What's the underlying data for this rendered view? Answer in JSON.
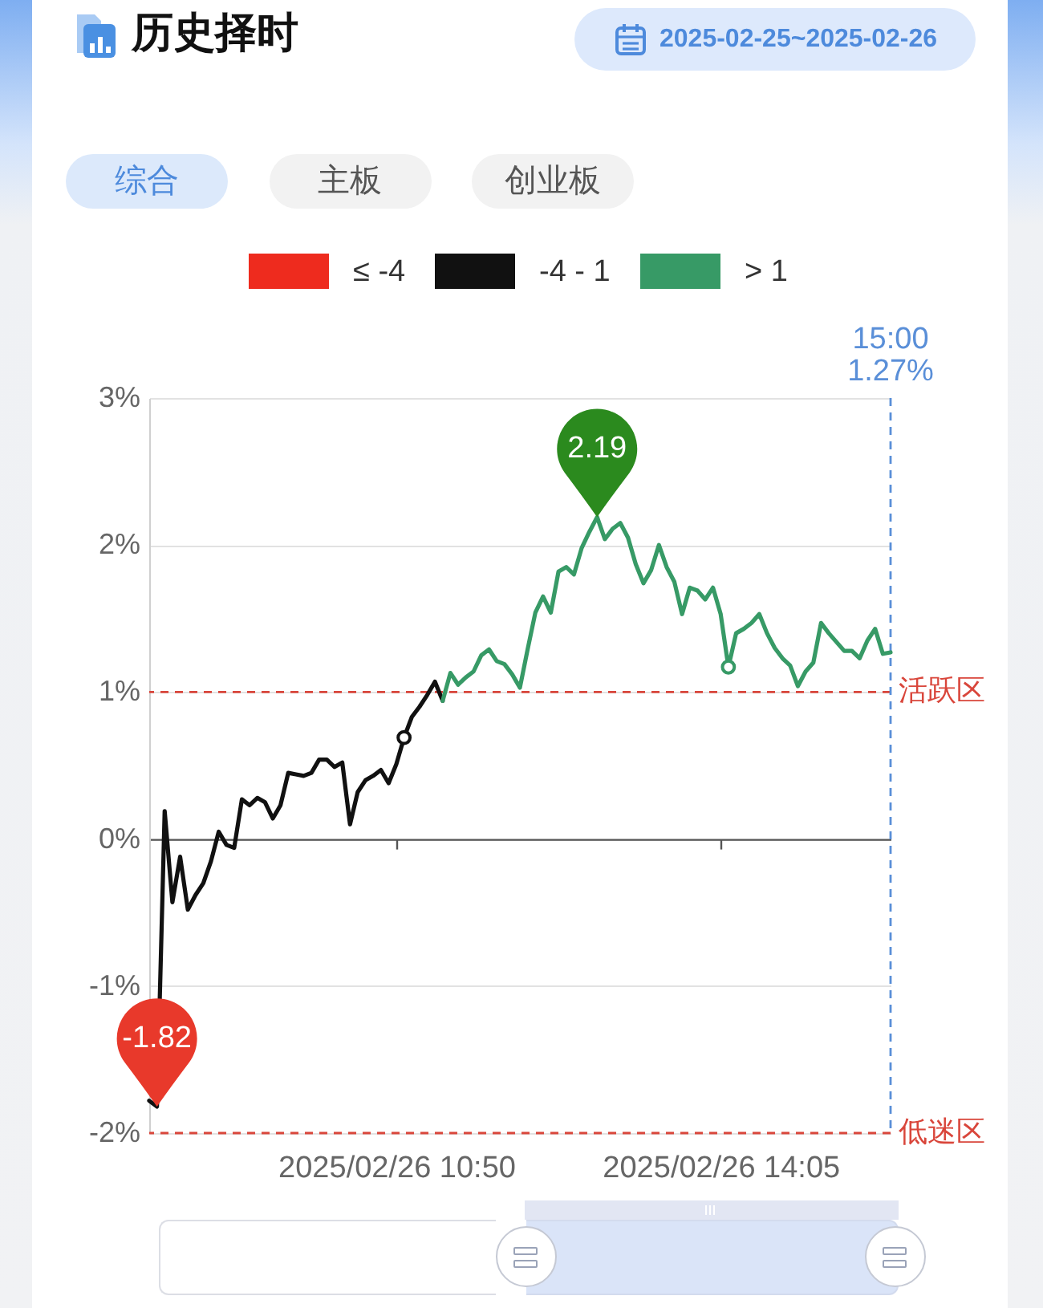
{
  "chart_data": {
    "type": "line",
    "title": "历史择时",
    "subtitle": "2025-02-25~2025-02-26",
    "categories": [
      null,
      null,
      null,
      null,
      null,
      null,
      null,
      null,
      null,
      null,
      null,
      null,
      null,
      null,
      null,
      null,
      null,
      null,
      null,
      null,
      null,
      null,
      null,
      null,
      null,
      null,
      null,
      null,
      null,
      null,
      null,
      null,
      "2025/02/26 10:50",
      null,
      null,
      null,
      null,
      null,
      null,
      null,
      null,
      null,
      null,
      null,
      null,
      null,
      null,
      null,
      null,
      null,
      null,
      null,
      null,
      null,
      null,
      null,
      null,
      null,
      null,
      null,
      null,
      null,
      null,
      null,
      null,
      null,
      null,
      null,
      null,
      null,
      null,
      null,
      null,
      null,
      "2025/02/26 14:05",
      null,
      null,
      null,
      null,
      null,
      null,
      null,
      null,
      null,
      null,
      null,
      null,
      null,
      null,
      null,
      null,
      null,
      null,
      null,
      null,
      null,
      null
    ],
    "ylim": [
      -2,
      3
    ],
    "yticks": [
      {
        "value": -2,
        "label": "-2%"
      },
      {
        "value": -1,
        "label": "-1%"
      },
      {
        "value": 0,
        "label": "0%"
      },
      {
        "value": 1,
        "label": "1%"
      },
      {
        "value": 2,
        "label": "2%"
      },
      {
        "value": 3,
        "label": "3%"
      }
    ],
    "grid": "y",
    "legend": "top",
    "series": [
      {
        "name": "≤ -4",
        "color": "#ee2b1e",
        "values": [
          null,
          null,
          null,
          null,
          null,
          null,
          null,
          null,
          null,
          null,
          null,
          null,
          null,
          null,
          null,
          null,
          null,
          null,
          null,
          null,
          null,
          null,
          null,
          null,
          null,
          null,
          null,
          null,
          null,
          null,
          null,
          null,
          null,
          null,
          null,
          null,
          null,
          null,
          null,
          null,
          null,
          null,
          null,
          null,
          null,
          null,
          null,
          null,
          null,
          null,
          null,
          null,
          null,
          null,
          null,
          null,
          null,
          null,
          null,
          null,
          null,
          null,
          null,
          null,
          null,
          null,
          null,
          null,
          null,
          null,
          null,
          null,
          null,
          null,
          null,
          null,
          null,
          null,
          null,
          null,
          null,
          null,
          null,
          null,
          null,
          null,
          null,
          null,
          null,
          null,
          null,
          null,
          null,
          null,
          null,
          null,
          null
        ]
      },
      {
        "name": "-4 - 1",
        "color": "#111111",
        "values": [
          -1.78,
          -1.82,
          0.19,
          -0.43,
          -0.12,
          -0.48,
          -0.38,
          -0.3,
          -0.15,
          0.05,
          -0.04,
          -0.06,
          0.27,
          0.23,
          0.28,
          0.25,
          0.14,
          0.23,
          0.45,
          0.44,
          0.43,
          0.45,
          0.54,
          0.54,
          0.49,
          0.52,
          0.1,
          0.32,
          0.4,
          0.43,
          0.47,
          0.38,
          0.51,
          0.69,
          0.83,
          0.9,
          0.98,
          1.07,
          0.94,
          null,
          null,
          null,
          null,
          null,
          null,
          null,
          null,
          null,
          null,
          null,
          null,
          null,
          null,
          null,
          null,
          null,
          null,
          null,
          null,
          null,
          null,
          null,
          null,
          null,
          null,
          null,
          null,
          null,
          null,
          null,
          null,
          null,
          null,
          null,
          null,
          null,
          null,
          null,
          null,
          null,
          null,
          null,
          null,
          null,
          null,
          null,
          null,
          null,
          null,
          null,
          null,
          null,
          null,
          null,
          null,
          null,
          null
        ]
      },
      {
        "name": "> 1",
        "color": "#379a66",
        "values": [
          null,
          null,
          null,
          null,
          null,
          null,
          null,
          null,
          null,
          null,
          null,
          null,
          null,
          null,
          null,
          null,
          null,
          null,
          null,
          null,
          null,
          null,
          null,
          null,
          null,
          null,
          null,
          null,
          null,
          null,
          null,
          null,
          null,
          null,
          null,
          null,
          null,
          null,
          0.94,
          1.13,
          1.05,
          1.1,
          1.14,
          1.25,
          1.29,
          1.21,
          1.19,
          1.12,
          1.03,
          1.29,
          1.54,
          1.65,
          1.54,
          1.82,
          1.85,
          1.8,
          1.98,
          2.09,
          2.19,
          2.04,
          2.11,
          2.15,
          2.05,
          1.87,
          1.74,
          1.83,
          2.0,
          1.85,
          1.75,
          1.53,
          1.71,
          1.69,
          1.63,
          1.71,
          1.53,
          1.17,
          1.4,
          1.43,
          1.47,
          1.53,
          1.4,
          1.3,
          1.23,
          1.18,
          1.04,
          1.14,
          1.2,
          1.47,
          1.4,
          1.34,
          1.28,
          1.28,
          1.23,
          1.35,
          1.43,
          1.26,
          1.27
        ]
      },
      {
        "type": "scatter",
        "marker": "circle",
        "color": "#111111",
        "values": [
          null,
          null,
          null,
          null,
          null,
          null,
          null,
          null,
          null,
          null,
          null,
          null,
          null,
          null,
          null,
          null,
          null,
          null,
          null,
          null,
          null,
          null,
          null,
          null,
          null,
          null,
          null,
          null,
          null,
          null,
          null,
          null,
          null,
          0.69,
          null,
          null,
          null,
          null,
          null,
          null,
          null,
          null,
          null,
          null,
          null,
          null,
          null,
          null,
          null,
          null,
          null,
          null,
          null,
          null,
          null,
          null,
          null,
          null,
          null,
          null,
          null,
          null,
          null,
          null,
          null,
          null,
          null,
          null,
          null,
          null,
          null,
          null,
          null,
          null,
          null,
          null,
          null,
          null,
          null,
          null,
          null,
          null,
          null,
          null,
          null,
          null,
          null,
          null,
          null,
          null,
          null,
          null,
          null,
          null,
          null,
          null,
          null
        ]
      },
      {
        "type": "scatter",
        "marker": "circle",
        "color": "#379a66",
        "values": [
          null,
          null,
          null,
          null,
          null,
          null,
          null,
          null,
          null,
          null,
          null,
          null,
          null,
          null,
          null,
          null,
          null,
          null,
          null,
          null,
          null,
          null,
          null,
          null,
          null,
          null,
          null,
          null,
          null,
          null,
          null,
          null,
          null,
          null,
          null,
          null,
          null,
          null,
          null,
          null,
          null,
          null,
          null,
          null,
          null,
          null,
          null,
          null,
          null,
          null,
          null,
          null,
          null,
          null,
          null,
          null,
          null,
          null,
          null,
          null,
          null,
          null,
          null,
          null,
          null,
          null,
          null,
          null,
          null,
          null,
          null,
          null,
          null,
          null,
          null,
          1.17,
          null,
          null,
          null,
          null,
          null,
          null,
          null,
          null,
          null,
          null,
          null,
          null,
          null,
          null,
          null,
          null,
          null,
          null,
          null,
          null,
          null
        ]
      }
    ],
    "ref_lines": [
      {
        "axis": "y",
        "value": 1,
        "label": "活跃区",
        "color": "#d9463b",
        "line_style": "dashed"
      },
      {
        "axis": "y",
        "value": -2,
        "label": "低迷区",
        "color": "#d9463b",
        "line_style": "dashed"
      }
    ],
    "annotations": [
      {
        "text": "-1.82",
        "y": -1.82
      },
      {
        "text": "2.19",
        "y": 2.19
      },
      "综合",
      "主板",
      "创业板",
      "15:00",
      "1.27%"
    ]
  }
}
